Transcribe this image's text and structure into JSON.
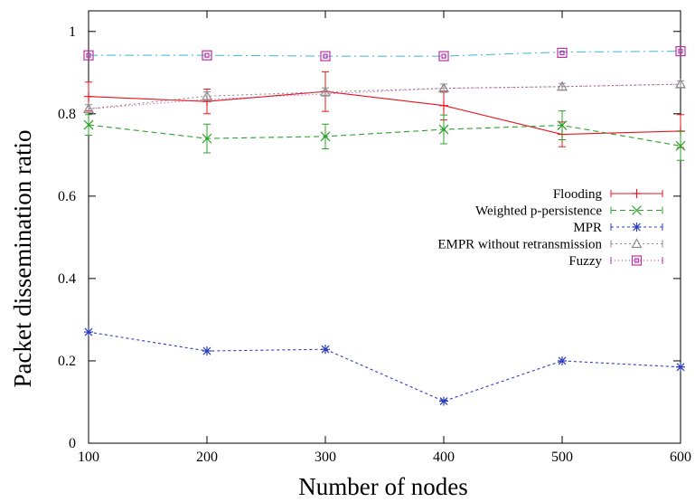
{
  "chart_data": {
    "type": "line",
    "xlabel": "Number of nodes",
    "ylabel": "Packet dissemination ratio",
    "xlim": [
      100,
      600
    ],
    "ylim": [
      0,
      1.05
    ],
    "x": [
      100,
      200,
      300,
      400,
      500,
      600
    ],
    "xticks": [
      100,
      200,
      300,
      400,
      500,
      600
    ],
    "yticks": [
      0,
      0.2,
      0.4,
      0.6,
      0.8,
      1
    ],
    "xtick_labels": [
      "100",
      "200",
      "300",
      "400",
      "500",
      "600"
    ],
    "ytick_labels": [
      "0",
      "0.2",
      "0.4",
      "0.6",
      "0.8",
      "1"
    ],
    "legend_position": "center-right",
    "grid": false,
    "series": [
      {
        "name": "Flooding",
        "values": [
          0.842,
          0.83,
          0.854,
          0.82,
          0.75,
          0.758
        ],
        "error": [
          0.035,
          0.03,
          0.048,
          0.035,
          0.03,
          0.04
        ],
        "color": "#e8141e",
        "dash": "",
        "marker": "plus",
        "plot_type": "line-errorbar"
      },
      {
        "name": "Weighted p-persistence",
        "values": [
          0.773,
          0.74,
          0.745,
          0.762,
          0.772,
          0.722
        ],
        "error": [
          0.025,
          0.035,
          0.03,
          0.035,
          0.035,
          0.035
        ],
        "color": "#2ba02b",
        "dash": "6,4",
        "marker": "x",
        "plot_type": "line-errorbar"
      },
      {
        "name": "MPR",
        "values": [
          0.27,
          0.224,
          0.228,
          0.102,
          0.2,
          0.185
        ],
        "color": "#2a3dbb",
        "dash": "3,3",
        "marker": "star",
        "plot_type": "line-errorbar"
      },
      {
        "name": "EMPR without retransmission",
        "values": [
          0.812,
          0.843,
          0.853,
          0.862,
          0.866,
          0.872
        ],
        "error": [
          0.01,
          0.01,
          0.01,
          0.01,
          0.008,
          0.008
        ],
        "color": "#8c8c8c",
        "dash": "2,3",
        "marker": "triangle",
        "plot_type": "line-errorbar"
      },
      {
        "name": "Fuzzy",
        "values": [
          0.942,
          0.942,
          0.94,
          0.94,
          0.948,
          0.952
        ],
        "color": "#c02fa6",
        "line_values": [
          0.812,
          0.835,
          0.848,
          0.862,
          0.866,
          0.872
        ],
        "line_color": "#c02fa6",
        "line_dash": "1,3",
        "marker": "square",
        "plot_type": "points"
      }
    ],
    "extra_lines": [
      {
        "values": [
          0.942,
          0.942,
          0.94,
          0.94,
          0.95,
          0.952
        ],
        "color": "#3fb7d6",
        "dash": "10,4,2,4"
      }
    ]
  }
}
